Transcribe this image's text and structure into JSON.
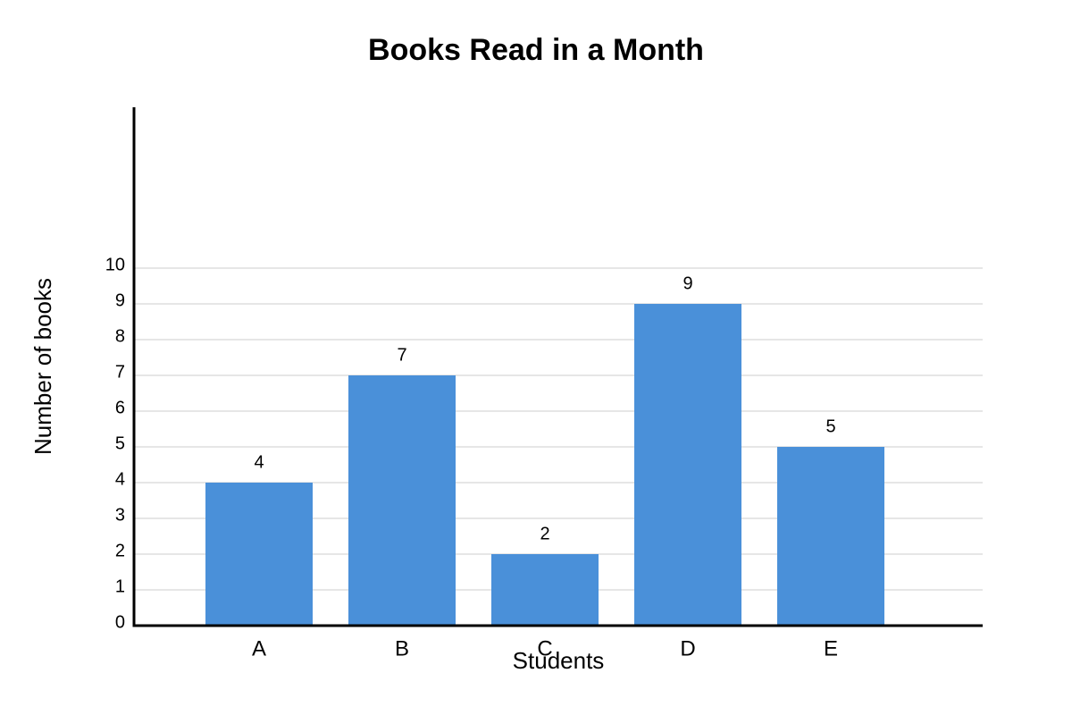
{
  "chart_data": {
    "type": "bar",
    "title": "Books Read in a Month",
    "x_label": "Students",
    "y_label": "Number of books",
    "categories": [
      "A",
      "B",
      "C",
      "D",
      "E"
    ],
    "values": [
      4,
      7,
      2,
      9,
      5
    ],
    "color": "#4a90d9",
    "ylim": [
      0,
      14.5
    ],
    "yticks": [
      0,
      1,
      2,
      3,
      4,
      5,
      6,
      7,
      8,
      9,
      10
    ],
    "grid": true
  }
}
